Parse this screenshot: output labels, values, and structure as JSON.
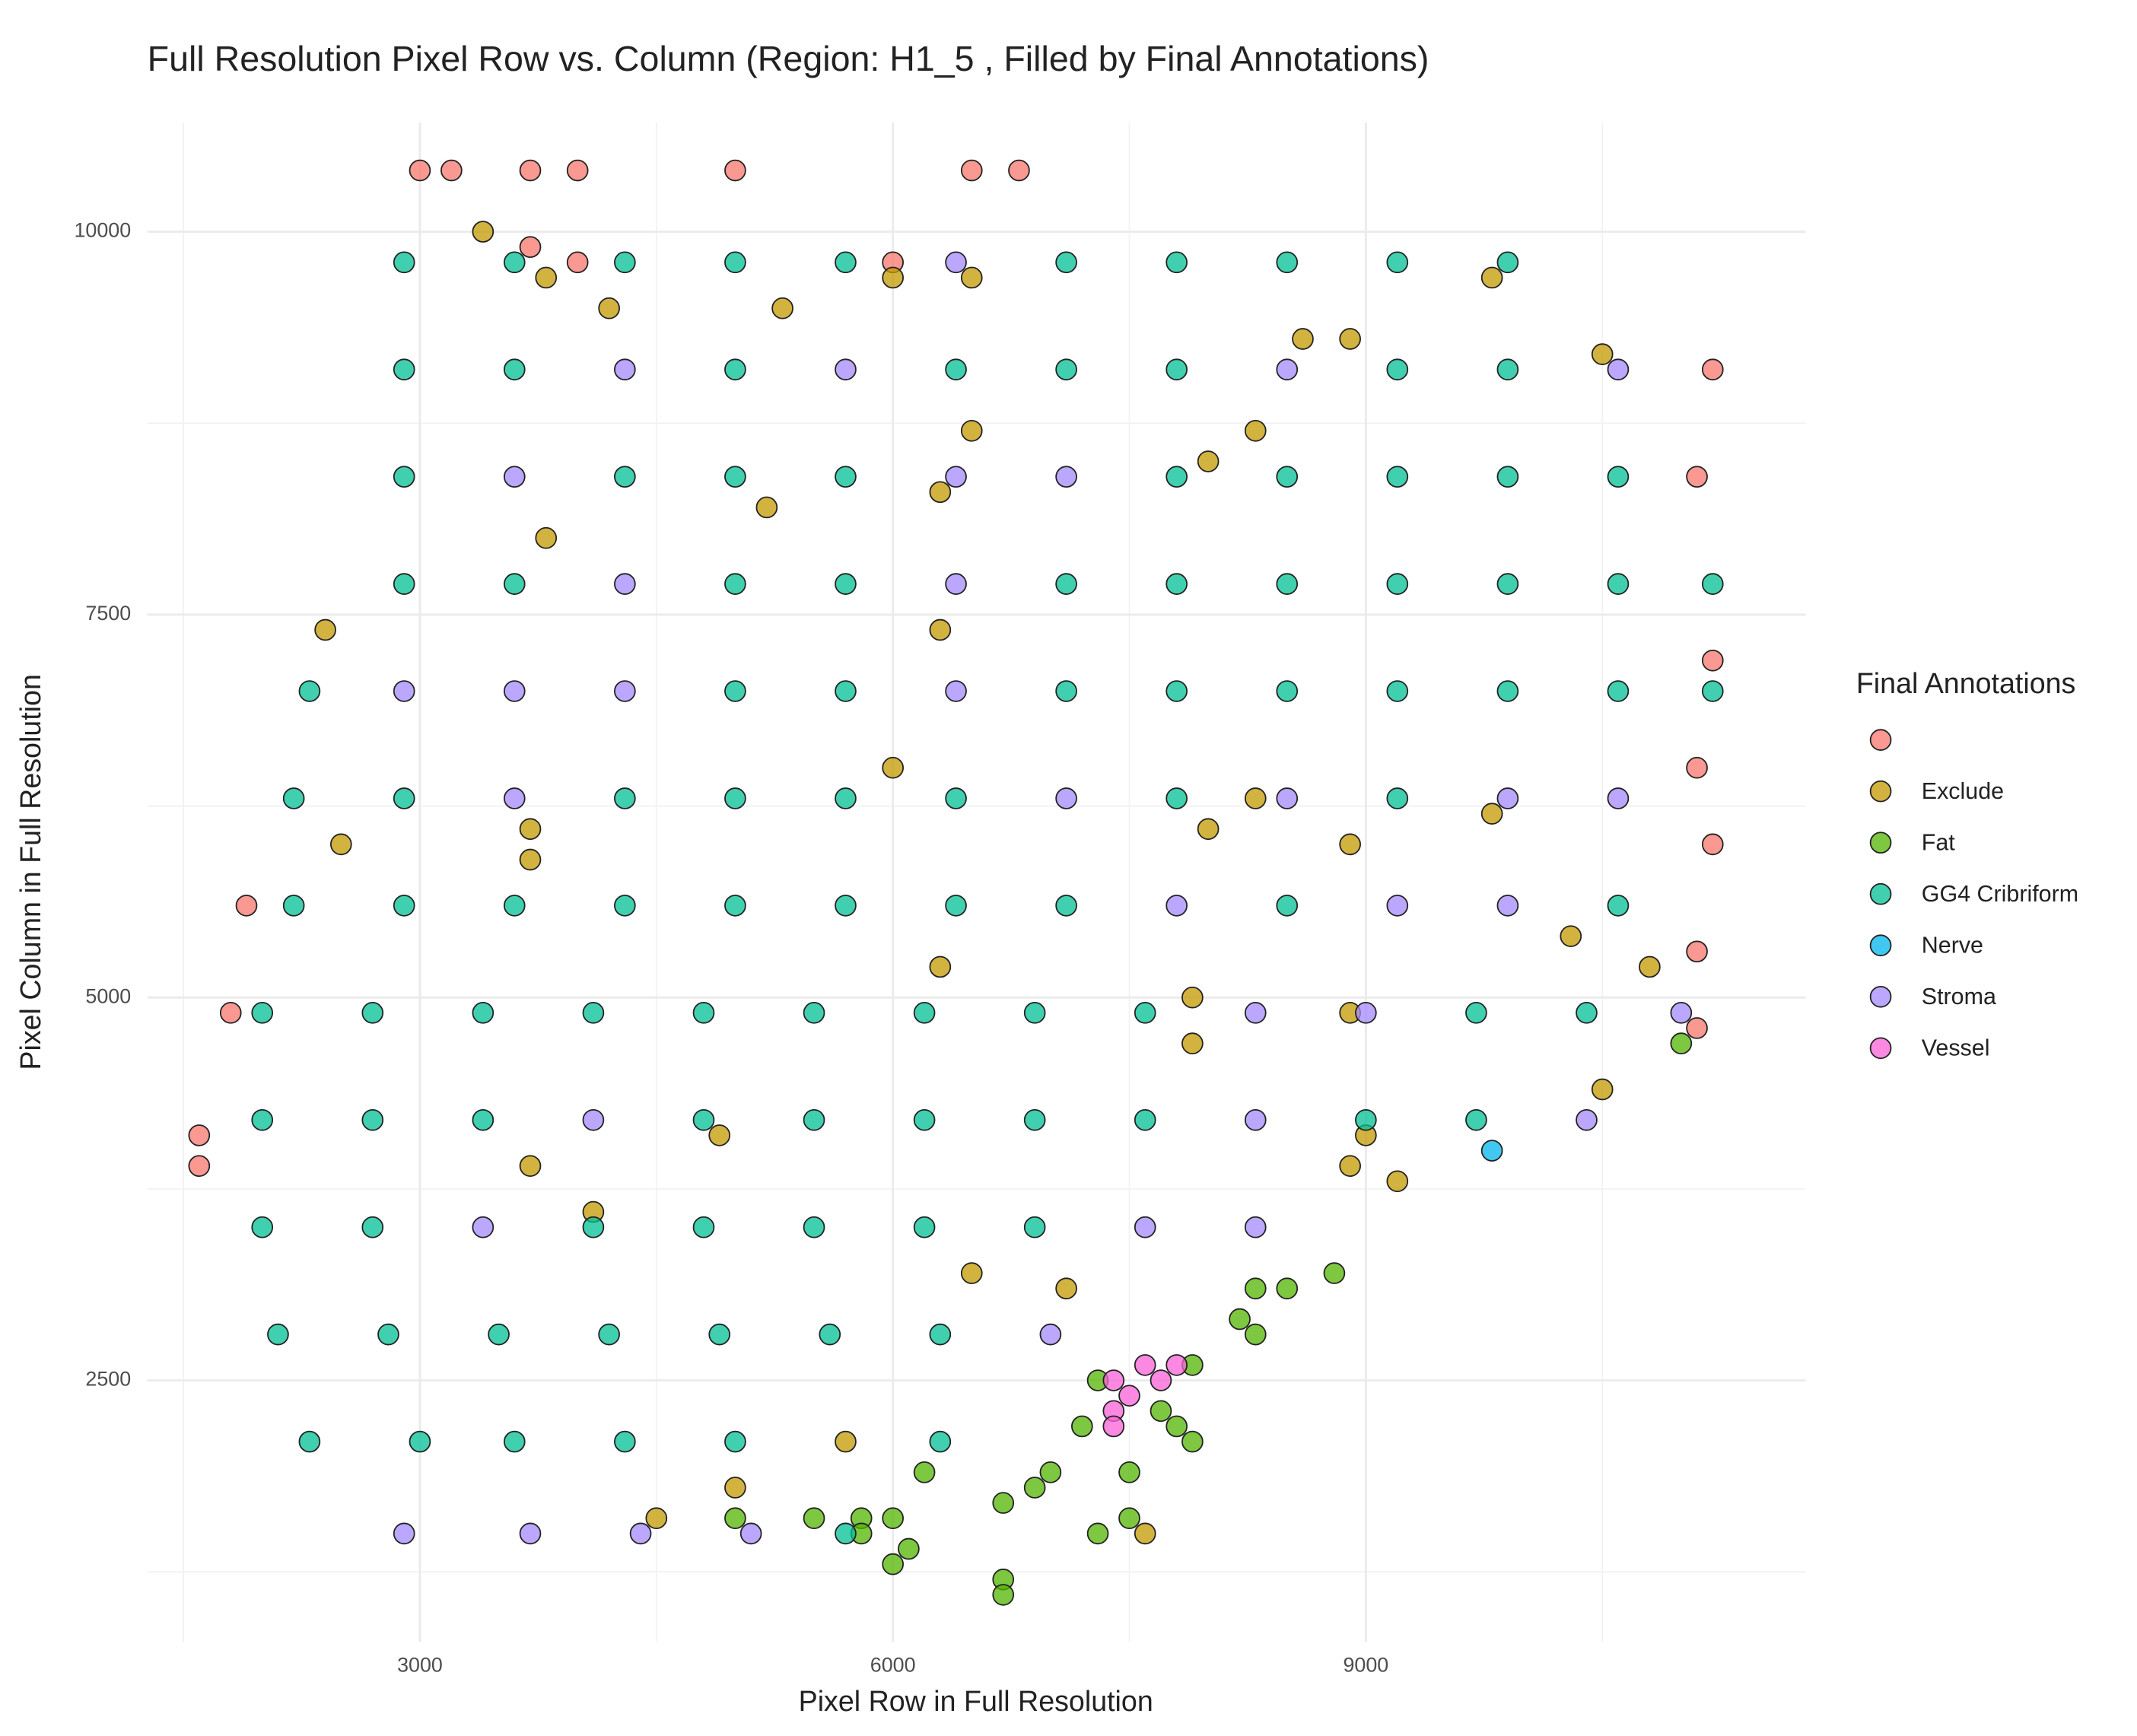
{
  "chart_data": {
    "type": "scatter",
    "title": "Full Resolution Pixel Row vs. Column (Region: H1_5 , Filled by Final Annotations)",
    "x_label": "Pixel Row in Full Resolution",
    "y_label": "Pixel Column in Full Resolution",
    "legend_title": "Final Annotations",
    "legend_position": "right",
    "grid": true,
    "xlim": [
      1271,
      11790
    ],
    "ylim": [
      792,
      10712
    ],
    "xticks": [
      3000,
      6000,
      9000
    ],
    "yticks": [
      2500,
      5000,
      7500,
      10000
    ],
    "x_minor_ticks": [
      1500,
      4500,
      7500,
      10500
    ],
    "y_minor_ticks": [
      1250,
      3750,
      6250,
      8750
    ],
    "series": [
      {
        "color": "#F8766D",
        "x": [
          3000,
          3200,
          3700,
          4000,
          5000,
          6500,
          6800,
          3700,
          4000,
          6000,
          1900,
          1800,
          1600,
          1600,
          11200,
          11100,
          11200,
          11100,
          11200,
          11100,
          11100
        ],
        "y": [
          10400,
          10400,
          10400,
          10400,
          10400,
          10400,
          10400,
          9900,
          9800,
          9800,
          5600,
          4900,
          4100,
          3900,
          9100,
          8400,
          7200,
          6500,
          6000,
          5300,
          4800
        ]
      },
      {
        "name": "Exclude",
        "color": "#C49A00",
        "x": [
          2400,
          2500,
          3400,
          3800,
          4200,
          5300,
          6000,
          6500,
          6500,
          6300,
          6300,
          5200,
          3800,
          3700,
          3700,
          6000,
          6300,
          7900,
          7900,
          8000,
          8300,
          8600,
          8900,
          8300,
          8000,
          8900,
          9800,
          10300,
          10800,
          10500,
          8900,
          9000,
          8900,
          9200,
          7100,
          6500,
          4900,
          3700,
          4100,
          5700,
          5000,
          4500,
          7600,
          9800,
          10500
        ],
        "y": [
          7400,
          6000,
          10000,
          9700,
          9500,
          9500,
          9700,
          9700,
          8700,
          8300,
          7400,
          8200,
          8000,
          6100,
          5900,
          6500,
          5200,
          5000,
          4700,
          8500,
          8700,
          9300,
          9300,
          6300,
          6100,
          6000,
          6200,
          5400,
          5200,
          4400,
          4900,
          4100,
          3900,
          3800,
          3100,
          3200,
          4100,
          3900,
          3600,
          2100,
          1800,
          1600,
          1500,
          9700,
          9200
        ]
      },
      {
        "name": "Fat",
        "color": "#53B400",
        "x": [
          11000,
          8300,
          8500,
          8800,
          8200,
          8300,
          7300,
          7900,
          7700,
          7800,
          7900,
          7500,
          7000,
          6900,
          6700,
          6200,
          5800,
          5500,
          5000,
          6000,
          6100,
          6700,
          6700,
          7300,
          7500,
          7200,
          5800,
          6000
        ],
        "y": [
          4700,
          3100,
          3100,
          3200,
          2900,
          2800,
          2500,
          2600,
          2300,
          2200,
          2100,
          1900,
          1900,
          1800,
          1700,
          1900,
          1600,
          1600,
          1600,
          1300,
          1400,
          1200,
          1100,
          1500,
          1600,
          2200,
          1500,
          1600
        ]
      },
      {
        "name": "GG4 Cribriform",
        "color": "#00C094",
        "x": [
          2900,
          3600,
          4300,
          5000,
          5700,
          7100,
          7800,
          8500,
          9200,
          9900,
          2900,
          3600,
          5000,
          6400,
          7100,
          7800,
          9200,
          9900,
          2900,
          4300,
          5000,
          5700,
          7800,
          8500,
          9200,
          9900,
          10600,
          2900,
          3600,
          5000,
          5700,
          7100,
          7800,
          8500,
          9200,
          9900,
          10600,
          11200,
          2300,
          5000,
          5700,
          7100,
          7800,
          8500,
          9200,
          9900,
          10600,
          11200,
          2200,
          2900,
          4300,
          5000,
          5700,
          6400,
          7800,
          9200,
          2200,
          2900,
          3600,
          4300,
          5000,
          5700,
          6400,
          7100,
          8500,
          10600,
          2000,
          2700,
          3400,
          4100,
          4800,
          5500,
          6200,
          6900,
          7600,
          9700,
          10400,
          2000,
          2700,
          3400,
          4800,
          5500,
          6200,
          6900,
          7600,
          9000,
          9700,
          2000,
          2700,
          4100,
          4800,
          5500,
          6200,
          6900,
          2100,
          2800,
          3500,
          4200,
          4900,
          5600,
          6300,
          2300,
          3000,
          3600,
          4300,
          5000,
          6300,
          5700
        ],
        "y": [
          9800,
          9800,
          9800,
          9800,
          9800,
          9800,
          9800,
          9800,
          9800,
          9800,
          9100,
          9100,
          9100,
          9100,
          9100,
          9100,
          9100,
          9100,
          8400,
          8400,
          8400,
          8400,
          8400,
          8400,
          8400,
          8400,
          8400,
          7700,
          7700,
          7700,
          7700,
          7700,
          7700,
          7700,
          7700,
          7700,
          7700,
          7700,
          7000,
          7000,
          7000,
          7000,
          7000,
          7000,
          7000,
          7000,
          7000,
          7000,
          6300,
          6300,
          6300,
          6300,
          6300,
          6300,
          6300,
          6300,
          5600,
          5600,
          5600,
          5600,
          5600,
          5600,
          5600,
          5600,
          5600,
          5600,
          4900,
          4900,
          4900,
          4900,
          4900,
          4900,
          4900,
          4900,
          4900,
          4900,
          4900,
          4200,
          4200,
          4200,
          4200,
          4200,
          4200,
          4200,
          4200,
          4200,
          4200,
          3500,
          3500,
          3500,
          3500,
          3500,
          3500,
          3500,
          2800,
          2800,
          2800,
          2800,
          2800,
          2800,
          2800,
          2100,
          2100,
          2100,
          2100,
          2100,
          2100,
          1500
        ]
      },
      {
        "name": "Nerve",
        "color": "#00B6EB",
        "x": [
          9800
        ],
        "y": [
          4000
        ]
      },
      {
        "name": "Stroma",
        "color": "#A58AFF",
        "x": [
          6400,
          4300,
          5700,
          8500,
          10600,
          3600,
          6400,
          7100,
          4300,
          6400,
          2900,
          3600,
          4300,
          6400,
          3600,
          7100,
          8500,
          9900,
          10600,
          7800,
          9200,
          9900,
          8300,
          9000,
          11000,
          4100,
          8300,
          10400,
          3400,
          7600,
          8300,
          7000,
          2900,
          3700,
          4400,
          5100
        ],
        "y": [
          9800,
          9100,
          9100,
          9100,
          9100,
          8400,
          8400,
          8400,
          7700,
          7700,
          7000,
          7000,
          7000,
          7000,
          6300,
          6300,
          6300,
          6300,
          6300,
          5600,
          5600,
          5600,
          4900,
          4900,
          4900,
          4200,
          4200,
          4200,
          3500,
          3500,
          3500,
          2800,
          1500,
          1500,
          1500,
          1500
        ]
      },
      {
        "name": "Vessel",
        "color": "#FB61D7",
        "x": [
          7400,
          7500,
          7600,
          7700,
          7800,
          7400,
          7400
        ],
        "y": [
          2500,
          2400,
          2600,
          2500,
          2600,
          2300,
          2200
        ]
      }
    ]
  }
}
